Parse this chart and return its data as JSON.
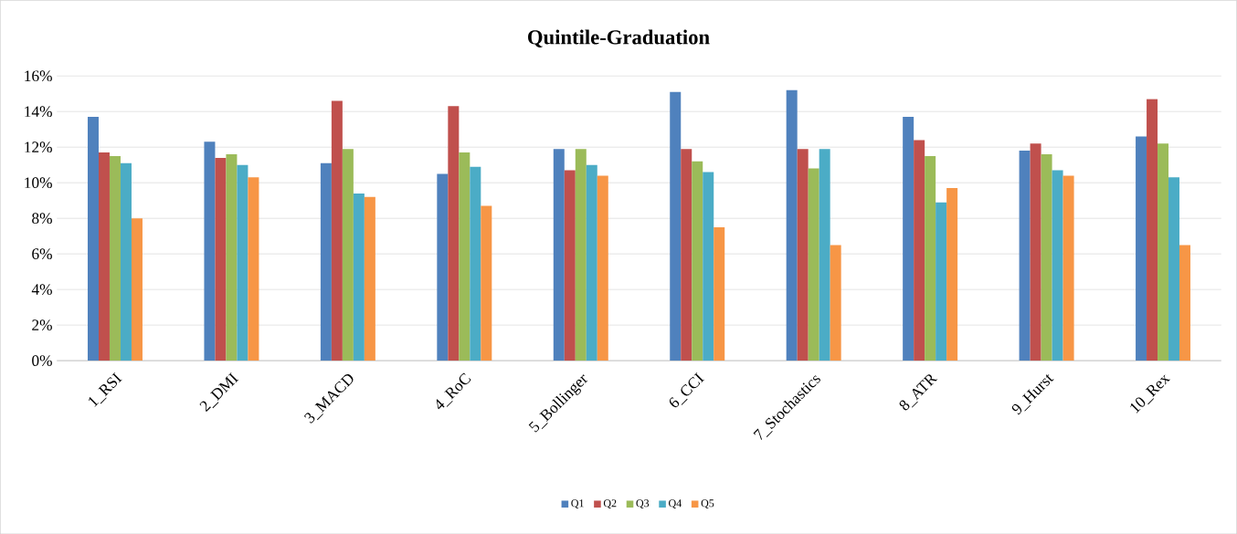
{
  "chart_data": {
    "type": "bar",
    "title": "Quintile-Graduation",
    "categories": [
      "1_RSI",
      "2_DMI",
      "3_MACD",
      "4_RoC",
      "5_Bollinger",
      "6_CCI",
      "7_Stochastics",
      "8_ATR",
      "9_Hurst",
      "10_Rex"
    ],
    "series": [
      {
        "name": "Q1",
        "color": "#4f81bd",
        "values": [
          13.7,
          12.3,
          11.1,
          10.5,
          11.9,
          15.1,
          15.2,
          13.7,
          11.8,
          12.6
        ]
      },
      {
        "name": "Q2",
        "color": "#c0504d",
        "values": [
          11.7,
          11.4,
          14.6,
          14.3,
          10.7,
          11.9,
          11.9,
          12.4,
          12.2,
          14.7
        ]
      },
      {
        "name": "Q3",
        "color": "#9bbb59",
        "values": [
          11.5,
          11.6,
          11.9,
          11.7,
          11.9,
          11.2,
          10.8,
          11.5,
          11.6,
          12.2
        ]
      },
      {
        "name": "Q4",
        "color": "#4bacc6",
        "values": [
          11.1,
          11.0,
          9.4,
          10.9,
          11.0,
          10.6,
          11.9,
          8.9,
          10.7,
          10.3
        ]
      },
      {
        "name": "Q5",
        "color": "#f79646",
        "values": [
          8.0,
          10.3,
          9.2,
          8.7,
          10.4,
          7.5,
          6.5,
          9.7,
          10.4,
          6.5
        ]
      }
    ],
    "ylim": [
      0,
      16
    ],
    "yticks": [
      {
        "value": 0,
        "label": "0%"
      },
      {
        "value": 2,
        "label": "2%"
      },
      {
        "value": 4,
        "label": "4%"
      },
      {
        "value": 6,
        "label": "6%"
      },
      {
        "value": 8,
        "label": "8%"
      },
      {
        "value": 10,
        "label": "10%"
      },
      {
        "value": 12,
        "label": "12%"
      },
      {
        "value": 14,
        "label": "14%"
      },
      {
        "value": 16,
        "label": "16%"
      }
    ],
    "grid": "y",
    "legend": "bottom"
  }
}
